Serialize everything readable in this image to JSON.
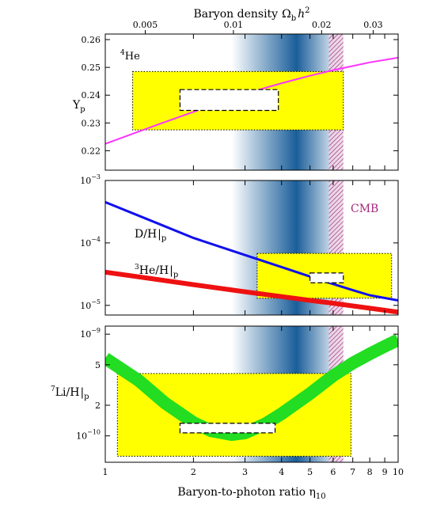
{
  "chart_data": {
    "type": "line",
    "title": "",
    "top_axis": {
      "label_text": "Baryon density",
      "label_symbol_base": "Ω",
      "label_symbol_sub": "b",
      "label_symbol_h": "h",
      "label_symbol_exp": "2",
      "ticks": [
        {
          "label": "0.005",
          "value": 0.005
        },
        {
          "label": "0.01",
          "value": 0.01
        },
        {
          "label": "0.02",
          "value": 0.02
        },
        {
          "label": "0.03",
          "value": 0.03
        }
      ],
      "scale": "log"
    },
    "x_axis": {
      "label_text": "Baryon-to-photon ratio η",
      "label_sub": "10",
      "scale": "log",
      "range": [
        1,
        10
      ],
      "ticks": [
        {
          "label": "1",
          "value": 1
        },
        {
          "label": "2",
          "value": 2
        },
        {
          "label": "3",
          "value": 3
        },
        {
          "label": "4",
          "value": 4
        },
        {
          "label": "5",
          "value": 5
        },
        {
          "label": "6",
          "value": 6
        },
        {
          "label": "7",
          "value": 7
        },
        {
          "label": "8",
          "value": 8
        },
        {
          "label": "9",
          "value": 9
        },
        {
          "label": "10",
          "value": 10
        }
      ]
    },
    "shading": {
      "bbn_band_range": [
        2.7,
        6.4
      ],
      "bbn_band_peak": 4.5,
      "cmb_band_range": [
        5.8,
        6.5
      ],
      "cmb_label": "CMB",
      "cmb_color": "#a3287a",
      "band_color": "#1a5e9a"
    },
    "panels": [
      {
        "id": "helium4",
        "label_base": "4",
        "label_rest": "He",
        "ylabel_base": "Y",
        "ylabel_sub": "p",
        "scale": "linear",
        "ylim": [
          0.213,
          0.262
        ],
        "ticks": [
          {
            "label": "0.22",
            "value": 0.22
          },
          {
            "label": "0.23",
            "value": 0.23
          },
          {
            "label": "0.24",
            "value": 0.24
          },
          {
            "label": "0.25",
            "value": 0.25
          },
          {
            "label": "0.26",
            "value": 0.26
          }
        ],
        "series": [
          {
            "color": "#ff33ff",
            "width": "thin",
            "x": [
              1.0,
              1.5,
              2.0,
              3.0,
              4.0,
              5.0,
              6.0,
              7.0,
              8.0,
              10.0
            ],
            "y": [
              0.2225,
              0.2293,
              0.234,
              0.2405,
              0.2443,
              0.247,
              0.249,
              0.2505,
              0.2518,
              0.2535
            ]
          }
        ],
        "boxes": [
          {
            "style": "yellow-dotted",
            "x": [
              1.24,
              6.5
            ],
            "y": [
              0.2275,
              0.2485
            ]
          },
          {
            "style": "white-dashed",
            "x": [
              1.8,
              3.9
            ],
            "y": [
              0.2345,
              0.242
            ]
          }
        ]
      },
      {
        "id": "deuterium-helium3",
        "scale": "log",
        "ylim": [
          7e-06,
          0.001
        ],
        "ticks": [
          {
            "base": "10",
            "exp": "−3",
            "value": 0.001
          },
          {
            "base": "10",
            "exp": "−4",
            "value": 0.0001
          },
          {
            "base": "10",
            "exp": "−5",
            "value": 1e-05
          }
        ],
        "series": [
          {
            "label_base": "D/H",
            "label_sub": "p",
            "color": "#1010ee",
            "width": "medium",
            "x": [
              1.0,
              1.5,
              2.0,
              3.0,
              4.0,
              5.0,
              6.0,
              7.0,
              8.0,
              10.0
            ],
            "y": [
              0.00045,
              0.000208,
              0.00012,
              6.4e-05,
              4.1e-05,
              2.9e-05,
              2.2e-05,
              1.75e-05,
              1.45e-05,
              1.2e-05
            ]
          },
          {
            "label_base": "He/H",
            "label_pre_sup": "3",
            "label_sub": "p",
            "color": "#ee1111",
            "width": "thick",
            "x": [
              1.0,
              1.5,
              2.0,
              3.0,
              4.0,
              5.0,
              6.0,
              7.0,
              8.0,
              10.0
            ],
            "y": [
              3.4e-05,
              2.6e-05,
              2.15e-05,
              1.65e-05,
              1.38e-05,
              1.2e-05,
              1.08e-05,
              9.8e-06,
              9e-06,
              7.8e-06
            ]
          }
        ],
        "boxes": [
          {
            "style": "yellow-dotted",
            "x": [
              3.3,
              9.5
            ],
            "y": [
              1.3e-05,
              6.8e-05
            ]
          },
          {
            "style": "white-dashed",
            "x": [
              5.0,
              6.5
            ],
            "y": [
              2.3e-05,
              3.3e-05
            ]
          }
        ]
      },
      {
        "id": "lithium7",
        "ylabel_pre_sup": "7",
        "ylabel_base": "Li/H",
        "ylabel_sub": "p",
        "scale": "log",
        "ylim": [
          5.5e-11,
          1.2e-09
        ],
        "ticks": [
          {
            "base": "10",
            "exp": "−9",
            "value": 1e-09
          },
          {
            "label": "5",
            "value": 5e-10
          },
          {
            "label": "2",
            "value": 2e-10
          },
          {
            "base": "10",
            "exp": "−10",
            "value": 1e-10
          }
        ],
        "series": [
          {
            "color": "#22dd22",
            "width": "very-thick",
            "x": [
              1.0,
              1.3,
              1.6,
              2.0,
              2.3,
              2.7,
              3.0,
              3.5,
              4.0,
              5.0,
              6.0,
              7.0,
              8.0,
              9.0,
              10.0
            ],
            "y": [
              5.8e-10,
              3.5e-10,
              2.1e-10,
              1.35e-10,
              1.12e-10,
              1.03e-10,
              1.07e-10,
              1.3e-10,
              1.65e-10,
              2.6e-10,
              3.9e-10,
              5.2e-10,
              6.4e-10,
              7.6e-10,
              8.8e-10
            ]
          }
        ],
        "boxes": [
          {
            "style": "yellow-dotted",
            "x": [
              1.1,
              6.9
            ],
            "y": [
              6.3e-11,
              4.1e-10
            ]
          },
          {
            "style": "white-dashed",
            "x": [
              1.8,
              3.8
            ],
            "y": [
              1.07e-10,
              1.33e-10
            ]
          }
        ]
      }
    ]
  }
}
